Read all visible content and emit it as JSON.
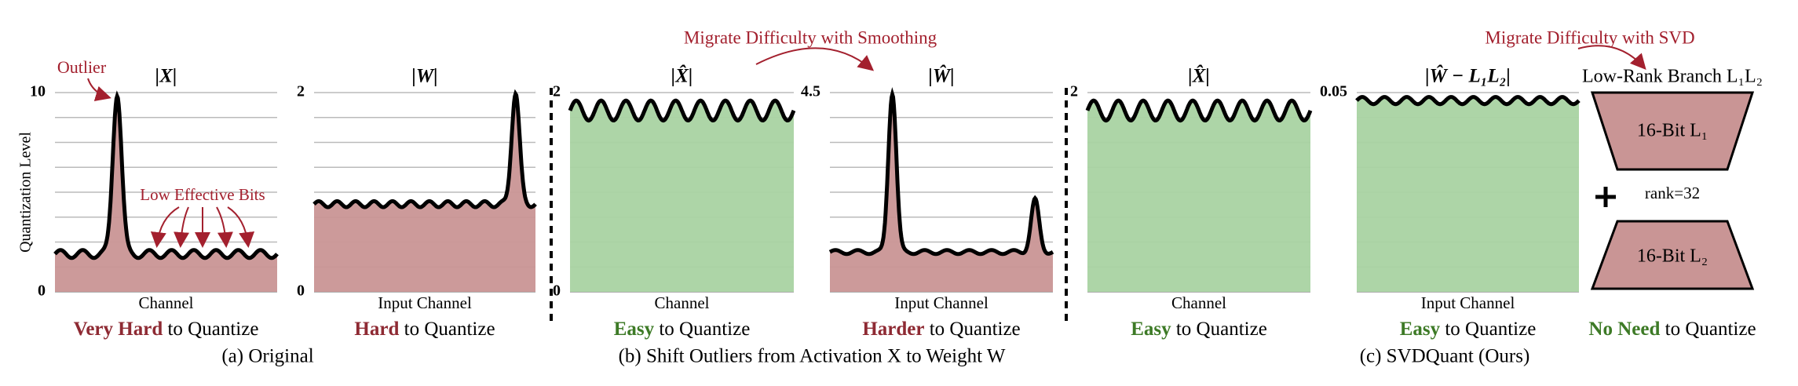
{
  "y_axis_label": "Quantization Level",
  "panels": [
    {
      "title": "|X|",
      "top_tick": "10",
      "bottom_tick": "0",
      "x_label": "Channel",
      "caption_em": "Very Hard",
      "caption_rest": "to Quantize"
    },
    {
      "title": "|W|",
      "top_tick": "2",
      "bottom_tick": "0",
      "x_label": "Input Channel",
      "caption_em": "Hard",
      "caption_rest": "to Quantize"
    },
    {
      "title": "|X̂|",
      "top_tick": "2",
      "bottom_tick": "0",
      "x_label": "Channel",
      "caption_em": "Easy",
      "caption_rest": "to Quantize"
    },
    {
      "title": "|Ŵ|",
      "top_tick": "4.5",
      "x_label": "Input Channel",
      "caption_em": "Harder",
      "caption_rest": "to Quantize"
    },
    {
      "title": "|X̂|",
      "top_tick": "2",
      "x_label": "Channel",
      "caption_em": "Easy",
      "caption_rest": "to Quantize"
    },
    {
      "title": "|Ŵ − L₁L₂|",
      "top_tick": "0.05",
      "x_label": "Input Channel",
      "caption_em": "Easy",
      "caption_rest": "to Quantize"
    }
  ],
  "annotations": {
    "outlier": "Outlier",
    "low_bits": "Low Effective Bits",
    "migrate_smoothing": "Migrate Difficulty with Smoothing",
    "migrate_svd": "Migrate Difficulty with SVD"
  },
  "low_rank": {
    "title": "Low-Rank Branch L₁L₂",
    "top": "16-Bit L₁",
    "rank": "rank=32",
    "bottom": "16-Bit L₂",
    "caption_em": "No Need",
    "caption_rest": "to Quantize"
  },
  "groups": [
    "(a) Original",
    "(b) Shift Outliers from Activation X to Weight W",
    "(c) SVDQuant (Ours)"
  ]
}
